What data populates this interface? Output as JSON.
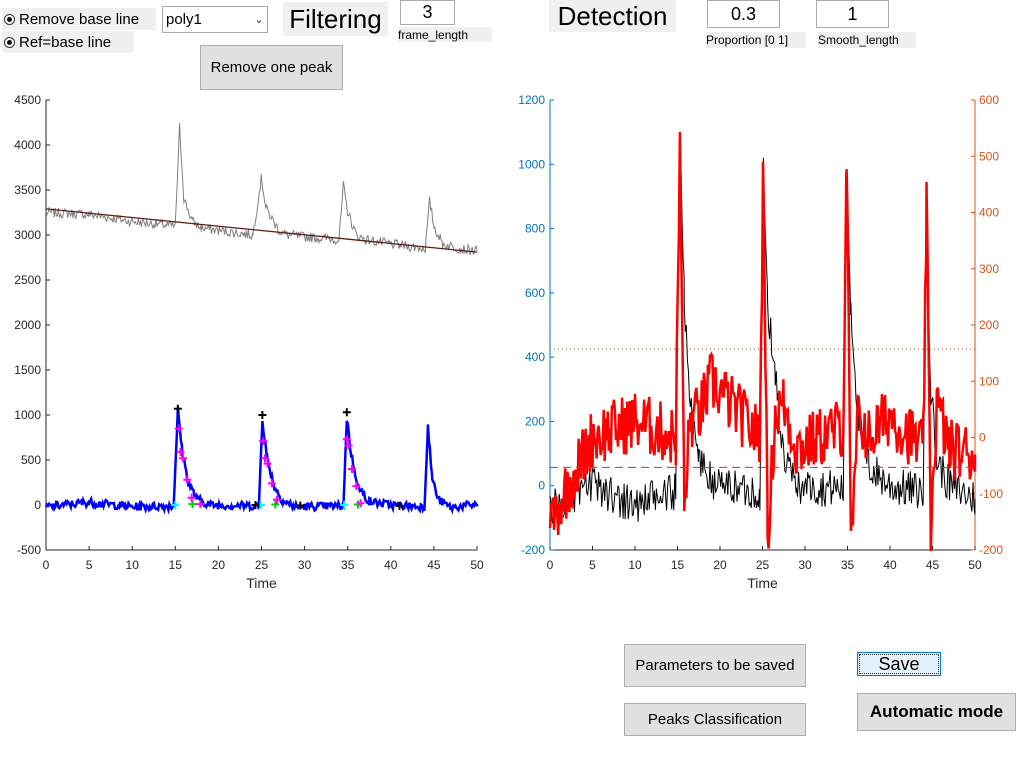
{
  "controls": {
    "radio_remove_baseline": "Remove base line",
    "radio_ref_baseline": "Ref=base line",
    "baseline_method_value": "poly1",
    "filtering_title": "Filtering",
    "frame_length_value": "3",
    "frame_length_caption": "frame_length",
    "remove_peak_button": "Remove one peak",
    "detection_title": "Detection",
    "proportion_value": "0.3",
    "proportion_caption": "Proportion [0 1]",
    "smooth_value": "1",
    "smooth_caption": "Smooth_length"
  },
  "buttons": {
    "parameters_save": "Parameters to be saved",
    "save": "Save",
    "peaks_classification": "Peaks Classification",
    "automatic_mode": "Automatic mode"
  },
  "colors": {
    "raw": "#7f7f7f",
    "baseline": "#5a1a1a",
    "filtered": "#0000ff",
    "detect_black": "#000000",
    "detect_red": "#ff0000",
    "left_axis": "#0072bd",
    "right_axis": "#d95319",
    "peak_marker": "#000000",
    "decay_marker": "#ff00ff",
    "start_marker": "#00ffff",
    "end_marker": "#00cc00"
  },
  "chart_data": [
    {
      "type": "line",
      "xlabel": "Time",
      "ylabel": "",
      "xlim": [
        0,
        50
      ],
      "ylim": [
        -500,
        4500
      ],
      "xticks": [
        "0",
        "5",
        "10",
        "15",
        "20",
        "25",
        "30",
        "35",
        "40",
        "45",
        "50"
      ],
      "yticks": [
        "-500",
        "0",
        "500",
        "1000",
        "1500",
        "2000",
        "2500",
        "3000",
        "3500",
        "4000",
        "4500"
      ],
      "series": [
        {
          "role": "raw",
          "x": [
            0,
            5,
            10,
            15,
            15.5,
            16,
            17,
            18,
            20,
            24,
            25,
            25.5,
            27,
            28,
            30,
            34,
            34.5,
            35,
            36,
            37,
            40,
            44,
            44.5,
            45,
            46,
            48,
            50
          ],
          "values": [
            3250,
            3230,
            3150,
            3100,
            4200,
            3400,
            3150,
            3080,
            3050,
            3000,
            3650,
            3300,
            3050,
            3000,
            2980,
            2950,
            3550,
            3250,
            3000,
            2950,
            2900,
            2850,
            3380,
            3100,
            2900,
            2850,
            2820
          ]
        },
        {
          "role": "baseline",
          "x": [
            0,
            50
          ],
          "values": [
            3290,
            2810
          ]
        },
        {
          "role": "filtered",
          "x": [
            0,
            5,
            10,
            14.8,
            15.3,
            15.8,
            16.5,
            17.5,
            19,
            24.7,
            25.1,
            25.6,
            26.5,
            27.5,
            29,
            34.5,
            34.9,
            35.4,
            36.3,
            37.5,
            40,
            43.9,
            44.3,
            44.8,
            45.5,
            47,
            50
          ],
          "values": [
            -20,
            30,
            -20,
            -10,
            1050,
            600,
            250,
            70,
            0,
            -10,
            960,
            550,
            200,
            40,
            -20,
            -10,
            970,
            560,
            180,
            40,
            0,
            -20,
            870,
            300,
            60,
            -30,
            10
          ]
        }
      ],
      "markers": {
        "peaks": {
          "x": [
            15.3,
            25.1,
            34.9
          ],
          "values": [
            1070,
            1000,
            1030
          ]
        },
        "decay": {
          "x": [
            15.4,
            15.6,
            15.9,
            16.4,
            16.9,
            17.9,
            25.2,
            25.4,
            25.7,
            26.2,
            26.8,
            34.9,
            35.1,
            35.5,
            36.0,
            36.5
          ],
          "values": [
            850,
            590,
            520,
            280,
            80,
            10,
            710,
            520,
            460,
            240,
            60,
            730,
            660,
            400,
            210,
            20
          ]
        },
        "starts": {
          "x": [
            15.0,
            24.9,
            34.6
          ],
          "values": [
            0,
            0,
            0
          ]
        },
        "ends": {
          "x": [
            17.0,
            26.6,
            36.2
          ],
          "values": [
            10,
            5,
            5
          ]
        },
        "others": {
          "x": [
            24.3,
            29.5,
            41.0
          ],
          "values": [
            0,
            -5,
            -10
          ]
        }
      }
    },
    {
      "type": "line",
      "xlabel": "Time",
      "xlim": [
        0,
        50
      ],
      "ylim_left": [
        -200,
        1200
      ],
      "ylim_right": [
        -200,
        600
      ],
      "xticks": [
        "0",
        "5",
        "10",
        "15",
        "20",
        "25",
        "30",
        "35",
        "40",
        "45",
        "50"
      ],
      "yticks_left": [
        "-200",
        "0",
        "200",
        "400",
        "600",
        "800",
        "1000",
        "1200"
      ],
      "yticks_right": [
        "-200",
        "-100",
        "0",
        "100",
        "200",
        "300",
        "400",
        "500",
        "600"
      ],
      "series": [
        {
          "role": "black",
          "axis": "left",
          "x": [
            0,
            5,
            10,
            14.8,
            15.3,
            15.8,
            16.5,
            17.5,
            19,
            24.7,
            25.1,
            25.6,
            26.5,
            27.5,
            29,
            34.5,
            34.9,
            35.4,
            36.3,
            37.5,
            40,
            43.9,
            44.3,
            44.8,
            45.5,
            47,
            50
          ],
          "values": [
            -70,
            0,
            -60,
            -20,
            1070,
            600,
            240,
            90,
            10,
            -20,
            1000,
            550,
            350,
            80,
            0,
            -10,
            960,
            560,
            200,
            60,
            0,
            -20,
            880,
            300,
            80,
            0,
            -40
          ]
        },
        {
          "role": "red",
          "axis": "right",
          "x": [
            0,
            5,
            10,
            14.8,
            15.3,
            15.8,
            16.5,
            17.5,
            19,
            24.7,
            25.1,
            25.6,
            26.5,
            27.5,
            29,
            34.5,
            34.9,
            35.4,
            36.3,
            37.5,
            40,
            43.9,
            44.3,
            44.8,
            45.5,
            47,
            50
          ],
          "values": [
            -150,
            0,
            30,
            0,
            520,
            -120,
            30,
            40,
            100,
            0,
            500,
            -180,
            40,
            60,
            -20,
            20,
            510,
            -200,
            40,
            0,
            40,
            -20,
            400,
            -160,
            60,
            -20,
            -30
          ]
        }
      ],
      "hlines": [
        {
          "axis": "left",
          "value": 425,
          "style": "dotted"
        },
        {
          "axis": "left",
          "value": 57,
          "style": "dashed"
        }
      ]
    }
  ]
}
